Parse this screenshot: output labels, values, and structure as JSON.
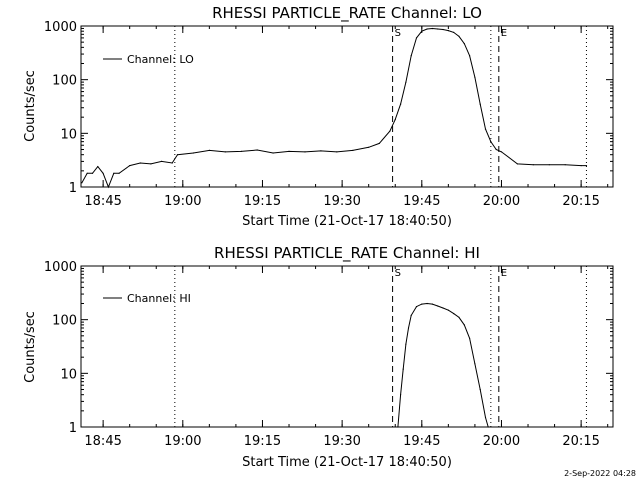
{
  "chart_data": [
    {
      "type": "line",
      "title": "RHESSI PARTICLE_RATE Channel: LO",
      "xlabel": "Start Time (21-Oct-17 18:40:50)",
      "ylabel": "Counts/sec",
      "yscale": "log",
      "ylim": [
        1,
        1000
      ],
      "xlim": [
        "18:40:50",
        "20:21:00"
      ],
      "x_ticks": [
        "18:45",
        "19:00",
        "19:15",
        "19:30",
        "19:45",
        "20:00",
        "20:15"
      ],
      "y_ticks": [
        "1",
        "10",
        "100",
        "1000"
      ],
      "legend": {
        "entries": [
          "Channel: LO"
        ],
        "placement": "top-left"
      },
      "markers": [
        {
          "label": "S",
          "time": "19:39:30",
          "style": "dashed"
        },
        {
          "label": "E",
          "time": "19:59:30",
          "style": "dashed"
        }
      ],
      "dotted_lines": [
        "18:58:30",
        "19:58:00",
        "20:16:00"
      ],
      "series": [
        {
          "name": "Channel: LO",
          "x": [
            "18:41:00",
            "18:42:00",
            "18:43:00",
            "18:44:00",
            "18:45:00",
            "18:46:00",
            "18:47:00",
            "18:48:00",
            "18:50:00",
            "18:52:00",
            "18:54:00",
            "18:56:00",
            "18:58:00",
            "18:59:00",
            "19:02:00",
            "19:05:00",
            "19:08:00",
            "19:11:00",
            "19:14:00",
            "19:17:00",
            "19:20:00",
            "19:23:00",
            "19:26:00",
            "19:29:00",
            "19:32:00",
            "19:35:00",
            "19:37:00",
            "19:39:00",
            "19:40:00",
            "19:41:00",
            "19:42:00",
            "19:43:00",
            "19:44:00",
            "19:45:00",
            "19:46:00",
            "19:47:00",
            "19:48:00",
            "19:49:00",
            "19:50:00",
            "19:51:00",
            "19:52:00",
            "19:53:00",
            "19:54:00",
            "19:55:00",
            "19:56:00",
            "19:57:00",
            "19:58:00",
            "19:59:00",
            "20:00:00",
            "20:03:00",
            "20:06:00",
            "20:09:00",
            "20:12:00",
            "20:15:00",
            "20:16:00"
          ],
          "y": [
            1.2,
            1.8,
            1.8,
            2.4,
            1.8,
            1.0,
            1.8,
            1.8,
            2.5,
            2.8,
            2.7,
            3.0,
            2.8,
            4.0,
            4.3,
            4.8,
            4.5,
            4.6,
            4.9,
            4.3,
            4.6,
            4.5,
            4.7,
            4.5,
            4.8,
            5.5,
            6.5,
            11,
            18,
            35,
            90,
            280,
            600,
            800,
            880,
            900,
            880,
            860,
            820,
            760,
            640,
            470,
            280,
            110,
            35,
            12,
            7,
            5.0,
            4.5,
            2.7,
            2.6,
            2.6,
            2.6,
            2.5,
            2.5
          ]
        }
      ]
    },
    {
      "type": "line",
      "title": "RHESSI PARTICLE_RATE Channel: HI",
      "xlabel": "Start Time (21-Oct-17 18:40:50)",
      "ylabel": "Counts/sec",
      "yscale": "log",
      "ylim": [
        1,
        1000
      ],
      "xlim": [
        "18:40:50",
        "20:21:00"
      ],
      "x_ticks": [
        "18:45",
        "19:00",
        "19:15",
        "19:30",
        "19:45",
        "20:00",
        "20:15"
      ],
      "y_ticks": [
        "1",
        "10",
        "100",
        "1000"
      ],
      "legend": {
        "entries": [
          "Channel: HI"
        ],
        "placement": "top-left"
      },
      "markers": [
        {
          "label": "S",
          "time": "19:39:30",
          "style": "dashed"
        },
        {
          "label": "E",
          "time": "19:59:30",
          "style": "dashed"
        }
      ],
      "dotted_lines": [
        "18:58:30",
        "19:58:00",
        "20:16:00"
      ],
      "series": [
        {
          "name": "Channel: HI",
          "x": [
            "19:40:30",
            "19:41:00",
            "19:41:30",
            "19:42:00",
            "19:42:30",
            "19:43:00",
            "19:44:00",
            "19:45:00",
            "19:46:00",
            "19:47:00",
            "19:48:00",
            "19:49:00",
            "19:50:00",
            "19:51:00",
            "19:52:00",
            "19:53:00",
            "19:54:00",
            "19:55:00",
            "19:56:00",
            "19:57:00",
            "19:57:30"
          ],
          "y": [
            1.0,
            4,
            12,
            35,
            70,
            120,
            175,
            195,
            200,
            195,
            180,
            165,
            150,
            130,
            110,
            80,
            45,
            15,
            5,
            1.5,
            1.0
          ]
        }
      ]
    }
  ],
  "footer": {
    "timestamp": "2-Sep-2022 04:28"
  }
}
